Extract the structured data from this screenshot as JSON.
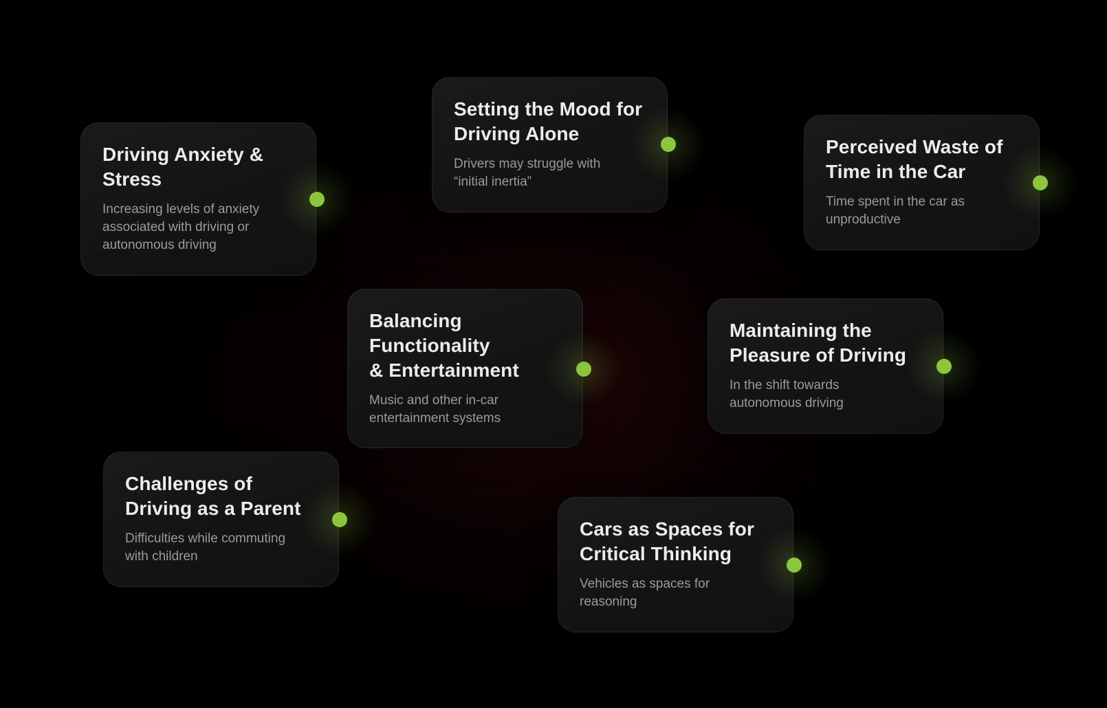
{
  "accent_color": "#8cc63f",
  "cards": [
    {
      "title": "Driving Anxiety &\nStress",
      "description": "Increasing levels of anxiety\nassociated with driving or\nautonomous driving"
    },
    {
      "title": "Setting the Mood for\nDriving Alone",
      "description": "Drivers may struggle with\n“initial inertia”"
    },
    {
      "title": "Perceived Waste of\nTime in the Car",
      "description": "Time spent in the car as\nunproductive"
    },
    {
      "title": "Balancing\nFunctionality\n& Entertainment",
      "description": "Music and other in-car\nentertainment systems"
    },
    {
      "title": "Maintaining the\nPleasure of Driving",
      "description": "In the shift towards\nautonomous driving"
    },
    {
      "title": "Challenges of\nDriving as a Parent",
      "description": "Difficulties while commuting\nwith children"
    },
    {
      "title": "Cars as Spaces for\nCritical Thinking",
      "description": "Vehicles as spaces for\nreasoning"
    }
  ]
}
